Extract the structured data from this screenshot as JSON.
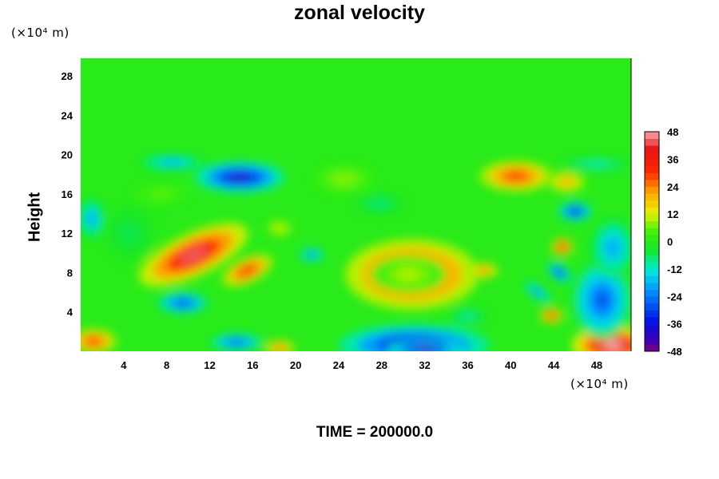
{
  "chart_data": {
    "type": "heatmap",
    "title": "zonal velocity",
    "ylabel": "Height",
    "xlabel": "",
    "x_unit": "(×10⁴ m)",
    "y_unit": "(×10⁴ m)",
    "footer": "TIME = 200000.0",
    "x_ticks": [
      4,
      8,
      12,
      16,
      20,
      24,
      28,
      32,
      36,
      40,
      44,
      48
    ],
    "y_ticks": [
      4,
      8,
      12,
      16,
      20,
      24,
      28
    ],
    "xlim": [
      0,
      51.2
    ],
    "ylim": [
      0,
      29.8
    ],
    "colorbar": {
      "range": [
        -48,
        48
      ],
      "step": 6,
      "labels": [
        48,
        36,
        24,
        12,
        0,
        -12,
        -24,
        -36,
        -48
      ]
    },
    "background_value": 0,
    "features": [
      {
        "x": 10.5,
        "y": 9.8,
        "rx": 5.5,
        "ry": 2.2,
        "rot": 25,
        "value": 44
      },
      {
        "x": 15.5,
        "y": 8.2,
        "rx": 2.6,
        "ry": 1.3,
        "rot": 25,
        "value": 34
      },
      {
        "x": 18.5,
        "y": 12.5,
        "rx": 1.4,
        "ry": 0.9,
        "rot": 0,
        "value": 12
      },
      {
        "x": 30.8,
        "y": 7.8,
        "rx": 6.2,
        "ry": 3.6,
        "rot": 0,
        "value": 40
      },
      {
        "x": 30.5,
        "y": 7.8,
        "rx": 3.5,
        "ry": 1.9,
        "rot": 0,
        "value": 10
      },
      {
        "x": 37.5,
        "y": 8.2,
        "rx": 1.4,
        "ry": 0.8,
        "rot": 0,
        "value": 26
      },
      {
        "x": 40.5,
        "y": 17.8,
        "rx": 3.5,
        "ry": 1.6,
        "rot": 0,
        "value": 32
      },
      {
        "x": 45.2,
        "y": 17.2,
        "rx": 1.8,
        "ry": 1.1,
        "rot": 0,
        "value": 22
      },
      {
        "x": 44.8,
        "y": 10.6,
        "rx": 1.0,
        "ry": 0.9,
        "rot": 0,
        "value": 40
      },
      {
        "x": 43.8,
        "y": 3.6,
        "rx": 1.1,
        "ry": 0.8,
        "rot": 0,
        "value": 36
      },
      {
        "x": 49.5,
        "y": 0.6,
        "rx": 3.8,
        "ry": 1.9,
        "rot": 0,
        "value": 50
      },
      {
        "x": 1.2,
        "y": 1.0,
        "rx": 2.2,
        "ry": 1.3,
        "rot": 0,
        "value": 32
      },
      {
        "x": 18.5,
        "y": 0.3,
        "rx": 1.5,
        "ry": 0.8,
        "rot": 0,
        "value": 28
      },
      {
        "x": 7.5,
        "y": 16.0,
        "rx": 2.8,
        "ry": 1.0,
        "rot": 0,
        "value": 6
      },
      {
        "x": 24.5,
        "y": 17.5,
        "rx": 3.0,
        "ry": 1.6,
        "rot": 0,
        "value": 8
      },
      {
        "x": 4.5,
        "y": 12.0,
        "rx": 2.5,
        "ry": 3.0,
        "rot": 0,
        "value": -6
      },
      {
        "x": 14.8,
        "y": 17.7,
        "rx": 4.2,
        "ry": 1.6,
        "rot": 0,
        "value": -40
      },
      {
        "x": 8.5,
        "y": 19.2,
        "rx": 3.0,
        "ry": 0.8,
        "rot": 0,
        "value": -20
      },
      {
        "x": 9.5,
        "y": 4.9,
        "rx": 2.4,
        "ry": 1.1,
        "rot": 0,
        "value": -30
      },
      {
        "x": 31.0,
        "y": 0.6,
        "rx": 7.0,
        "ry": 2.1,
        "rot": 0,
        "value": -40
      },
      {
        "x": 32.0,
        "y": 0.2,
        "rx": 3.5,
        "ry": 0.9,
        "rot": 0,
        "value": -44
      },
      {
        "x": 48.5,
        "y": 5.2,
        "rx": 2.8,
        "ry": 4.0,
        "rot": 0,
        "value": -28
      },
      {
        "x": 49.5,
        "y": 10.5,
        "rx": 2.0,
        "ry": 3.0,
        "rot": 0,
        "value": -20
      },
      {
        "x": 46.0,
        "y": 14.2,
        "rx": 1.6,
        "ry": 1.0,
        "rot": 0,
        "value": -34
      },
      {
        "x": 44.5,
        "y": 8.0,
        "rx": 1.3,
        "ry": 0.8,
        "rot": -35,
        "value": -32
      },
      {
        "x": 42.5,
        "y": 6.0,
        "rx": 1.6,
        "ry": 0.6,
        "rot": -35,
        "value": -24
      },
      {
        "x": 14.5,
        "y": 0.9,
        "rx": 2.5,
        "ry": 0.9,
        "rot": 0,
        "value": -28
      },
      {
        "x": 21.5,
        "y": 9.8,
        "rx": 1.2,
        "ry": 0.7,
        "rot": 0,
        "value": -24
      },
      {
        "x": 27.8,
        "y": 15.0,
        "rx": 2.5,
        "ry": 1.2,
        "rot": 0,
        "value": -8
      },
      {
        "x": 1.0,
        "y": 13.5,
        "rx": 1.2,
        "ry": 2.0,
        "rot": 0,
        "value": -20
      },
      {
        "x": 36.0,
        "y": 3.5,
        "rx": 2.0,
        "ry": 1.0,
        "rot": 0,
        "value": -10
      },
      {
        "x": 48.0,
        "y": 19.0,
        "rx": 3.5,
        "ry": 0.7,
        "rot": 0,
        "value": -12
      }
    ]
  }
}
